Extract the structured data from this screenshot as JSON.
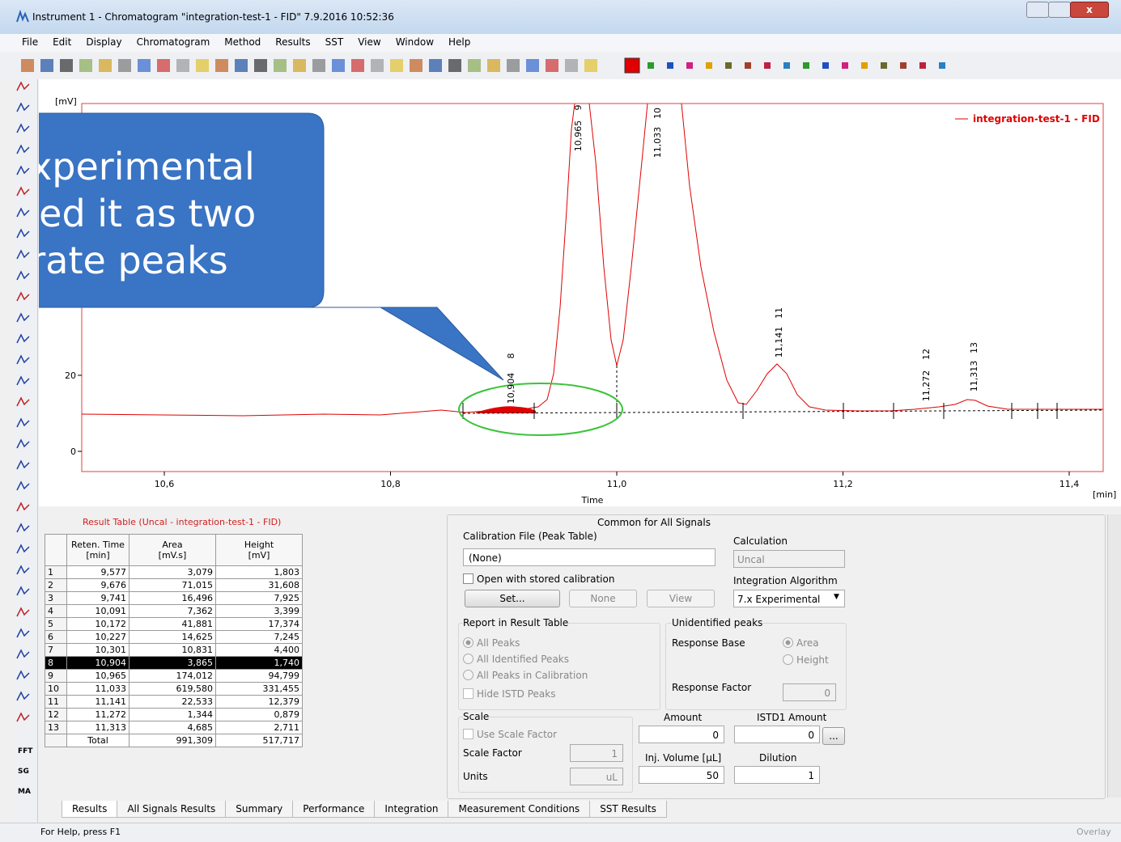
{
  "window": {
    "title": "Instrument 1 - Chromatogram \"integration-test-1 - FID\" 7.9.2016 10:52:36"
  },
  "menu": [
    "File",
    "Edit",
    "Display",
    "Chromatogram",
    "Method",
    "Results",
    "SST",
    "View",
    "Window",
    "Help"
  ],
  "side_tools": [
    "FFT",
    "SG",
    "MA"
  ],
  "callout": [
    "Experimental",
    "olved it as two",
    "parate peaks"
  ],
  "chart": {
    "y_unit": "[mV]",
    "yticks": [
      0,
      20
    ],
    "xticks": [
      {
        "value": 10.6,
        "label": "10,6"
      },
      {
        "value": 10.8,
        "label": "10,8"
      },
      {
        "value": 11.0,
        "label": "11,0"
      },
      {
        "value": 11.2,
        "label": "11,2"
      },
      {
        "value": 11.4,
        "label": "11,4"
      }
    ],
    "x_label": "Time",
    "x_unit": "[min]",
    "legend": "integration-test-1 - FID",
    "peaks": [
      {
        "time": "10,904",
        "id": "8"
      },
      {
        "time": "10,965",
        "id": "9"
      },
      {
        "time": "11,033",
        "id": "10"
      },
      {
        "time": "11,141",
        "id": "11"
      },
      {
        "time": "11,272",
        "id": "12"
      },
      {
        "time": "11,313",
        "id": "13"
      }
    ]
  },
  "table": {
    "title": "Result Table (Uncal - integration-test-1 - FID)",
    "columns": [
      {
        "name": "Reten. Time",
        "unit": "[min]"
      },
      {
        "name": "Area",
        "unit": "[mV.s]"
      },
      {
        "name": "Height",
        "unit": "[mV]"
      }
    ],
    "selected_row": "8",
    "rows": [
      [
        "1",
        "9,577",
        "3,079",
        "1,803"
      ],
      [
        "2",
        "9,676",
        "71,015",
        "31,608"
      ],
      [
        "3",
        "9,741",
        "16,496",
        "7,925"
      ],
      [
        "4",
        "10,091",
        "7,362",
        "3,399"
      ],
      [
        "5",
        "10,172",
        "41,881",
        "17,374"
      ],
      [
        "6",
        "10,227",
        "14,625",
        "7,245"
      ],
      [
        "7",
        "10,301",
        "10,831",
        "4,400"
      ],
      [
        "8",
        "10,904",
        "3,865",
        "1,740"
      ],
      [
        "9",
        "10,965",
        "174,012",
        "94,799"
      ],
      [
        "10",
        "11,033",
        "619,580",
        "331,455"
      ],
      [
        "11",
        "11,141",
        "22,533",
        "12,379"
      ],
      [
        "12",
        "11,272",
        "1,344",
        "0,879"
      ],
      [
        "13",
        "11,313",
        "4,685",
        "2,711"
      ]
    ],
    "total": [
      "Total",
      "991,309",
      "517,717"
    ]
  },
  "panel": {
    "title": "Common for All Signals",
    "calibration_file": "Calibration File (Peak Table)",
    "calibration_value": "(None)",
    "open_stored": "Open with stored calibration",
    "set": "Set...",
    "none": "None",
    "view": "View",
    "calculation": "Calculation",
    "calculation_value": "Uncal",
    "integration_algorithm": "Integration Algorithm",
    "algorithm_value": "7.x Experimental",
    "report": "Report in Result Table",
    "report_options": [
      "All Peaks",
      "All Identified Peaks",
      "All Peaks in Calibration"
    ],
    "hide_istd": "Hide ISTD Peaks",
    "unidentified": "Unidentified peaks",
    "response_base": "Response Base",
    "base_options": [
      "Area",
      "Height"
    ],
    "response_factor": "Response Factor",
    "response_factor_value": "0",
    "scale": "Scale",
    "use_scale_factor": "Use Scale Factor",
    "scale_factor": "Scale Factor",
    "scale_factor_value": "1",
    "units": "Units",
    "units_value": "uL",
    "amount": "Amount",
    "amount_value": "0",
    "istd1_amount": "ISTD1 Amount",
    "istd1_value": "0",
    "more": "...",
    "inj_volume": "Inj. Volume [µL]",
    "inj_volume_value": "50",
    "dilution": "Dilution",
    "dilution_value": "1"
  },
  "tabs": [
    "Results",
    "All Signals Results",
    "Summary",
    "Performance",
    "Integration",
    "Measurement Conditions",
    "SST Results"
  ],
  "status": {
    "help": "For Help, press F1",
    "overlay": "Overlay"
  }
}
